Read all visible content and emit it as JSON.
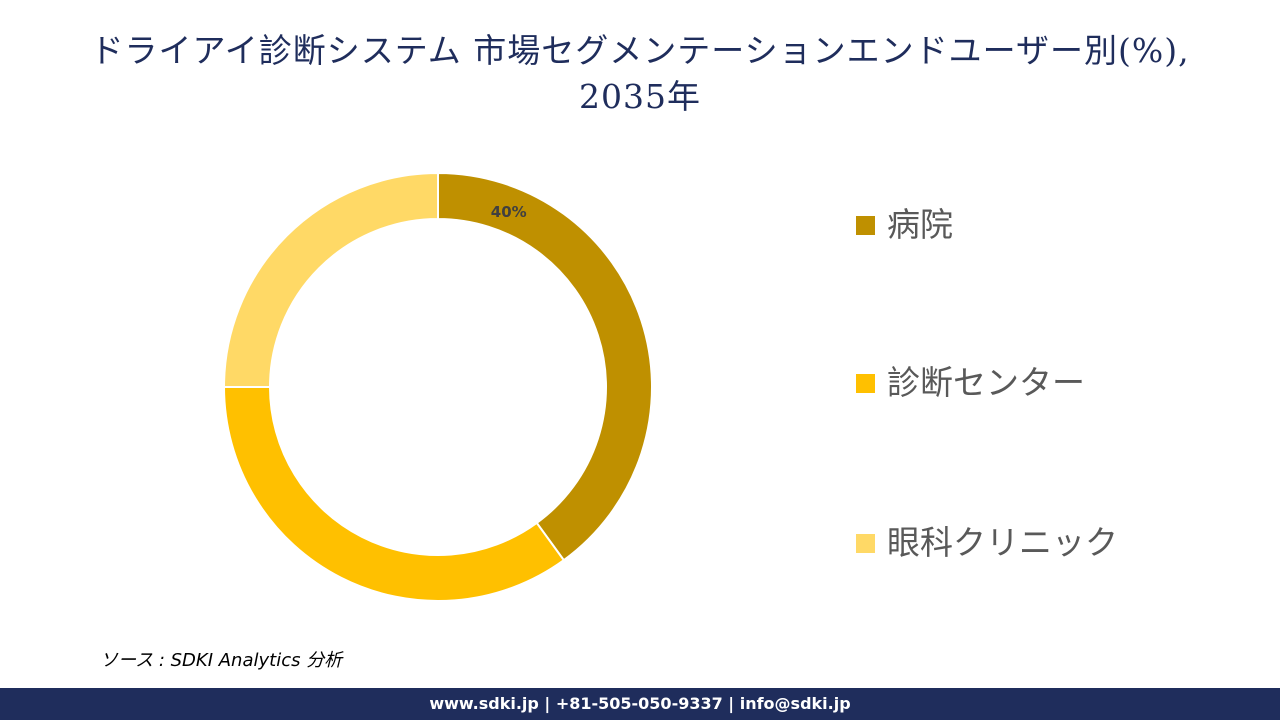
{
  "title": {
    "line1": "ドライアイ診断システム 市場セグメンテーションエンドユーザー別(%),",
    "line2": "2035年"
  },
  "chart_data": {
    "type": "pie",
    "style": "donut",
    "title": "ドライアイ診断システム 市場セグメンテーションエンドユーザー別(%), 2035年",
    "categories": [
      "病院",
      "診断センター",
      "眼科クリニック"
    ],
    "values": [
      40,
      35,
      25
    ],
    "data_labels": [
      "40%",
      "",
      ""
    ],
    "colors": [
      "#bf9000",
      "#ffc000",
      "#ffd966"
    ],
    "legend_position": "right"
  },
  "source": "ソース : SDKI Analytics 分析",
  "footer": "www.sdki.jp | +81-505-050-9337 | info@sdki.jp"
}
